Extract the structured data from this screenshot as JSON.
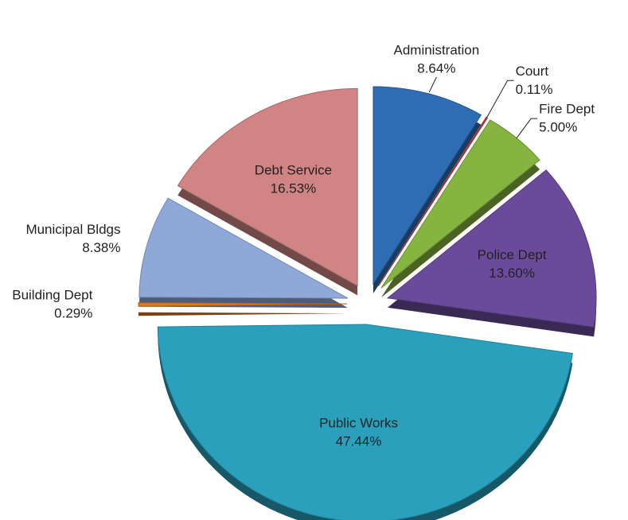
{
  "chart_data": {
    "type": "pie",
    "categories": [
      "Administration",
      "Court",
      "Fire Dept",
      "Police Dept",
      "Public Works",
      "Building Dept",
      "Municipal Bldgs",
      "Debt Service"
    ],
    "values": [
      8.64,
      0.11,
      5.0,
      13.6,
      47.44,
      0.29,
      8.38,
      16.53
    ],
    "value_labels": [
      "8.64%",
      "0.11%",
      "5.00%",
      "13.60%",
      "47.44%",
      "0.29%",
      "8.38%",
      "16.53%"
    ],
    "colors": [
      "#2e6db4",
      "#c0393a",
      "#86b440",
      "#6a4a9a",
      "#2aa0bd",
      "#e07a22",
      "#8ea8d8",
      "#d08484"
    ],
    "exploded": true
  }
}
